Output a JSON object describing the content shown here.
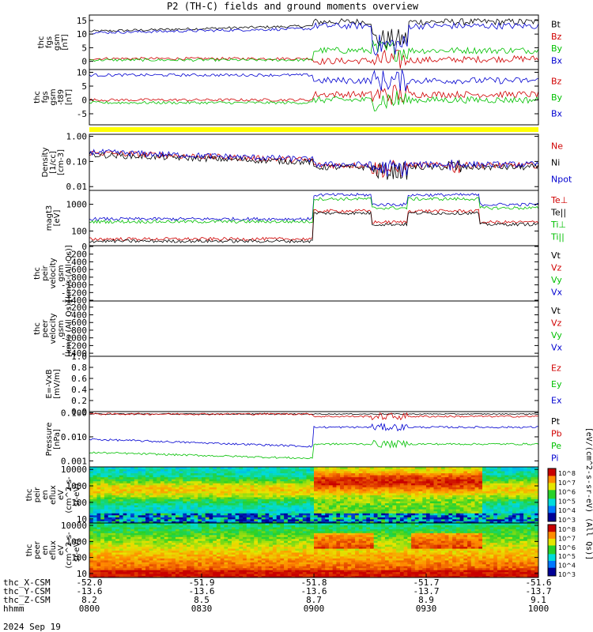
{
  "chart_data": {
    "type": "line",
    "title": "P2 (TH-C) fields and ground moments overview",
    "date": "2024 Sep 19",
    "panels": [
      {
        "key": "fgs_gsm",
        "ylabel": [
          "thc",
          "fgs",
          "gsm",
          "[nT]"
        ],
        "yticks": [
          15,
          10,
          5,
          0
        ],
        "legend": [
          {
            "label": "Bt",
            "color": "#000000"
          },
          {
            "label": "Bz",
            "color": "#d00000"
          },
          {
            "label": "By",
            "color": "#00c000"
          },
          {
            "label": "Bx",
            "color": "#0000d0"
          }
        ]
      },
      {
        "key": "fgs_gsm_b89",
        "ylabel": [
          "thc",
          "fgs",
          "gsm",
          "-t89",
          "[nT]"
        ],
        "yticks": [
          10,
          5,
          0,
          -5
        ],
        "legend": [
          {
            "label": "Bz",
            "color": "#d00000"
          },
          {
            "label": "By",
            "color": "#00c000"
          },
          {
            "label": "Bx",
            "color": "#0000d0"
          }
        ]
      },
      {
        "key": "density",
        "ylabel": [
          "Density",
          "[1/cc]",
          "[cm-3]"
        ],
        "yticks": [
          "1.00",
          "0.10",
          "0.01"
        ],
        "legend": [
          {
            "label": "Ne",
            "color": "#d00000"
          },
          {
            "label": "Ni",
            "color": "#000000"
          },
          {
            "label": "Npot",
            "color": "#0000d0"
          }
        ]
      },
      {
        "key": "temperature",
        "ylabel": [
          "magt3",
          "[eV]"
        ],
        "yticks": [
          1000,
          100
        ],
        "legend": [
          {
            "label": "Te⊥",
            "color": "#d00000"
          },
          {
            "label": "Te||",
            "color": "#000000"
          },
          {
            "label": "Ti⊥",
            "color": "#00c000"
          },
          {
            "label": "Ti||",
            "color": "#00c000"
          }
        ]
      },
      {
        "key": "peir_velocity",
        "ylabel": [
          "thc",
          "peir",
          "velocity",
          "gsm",
          "[km/s (All Qs)]"
        ],
        "yticks": [
          0,
          -200,
          -400,
          -600,
          -800,
          -1000,
          -1200,
          -1400
        ],
        "legend": [
          {
            "label": "Vt",
            "color": "#000000"
          },
          {
            "label": "Vz",
            "color": "#d00000"
          },
          {
            "label": "Vy",
            "color": "#00c000"
          },
          {
            "label": "Vx",
            "color": "#0000d0"
          }
        ]
      },
      {
        "key": "peer_velocity",
        "ylabel": [
          "thc",
          "peer",
          "velocity",
          "gsm",
          "[km/s (All Qs)]"
        ],
        "yticks": [
          -200,
          -400,
          -600,
          -800,
          -1000,
          -1200,
          -1400
        ],
        "legend": [
          {
            "label": "Vt",
            "color": "#000000"
          },
          {
            "label": "Vz",
            "color": "#d00000"
          },
          {
            "label": "Vy",
            "color": "#00c000"
          },
          {
            "label": "Vx",
            "color": "#0000d0"
          }
        ]
      },
      {
        "key": "efield",
        "ylabel": [
          "E=-VxB",
          "[mV/m]"
        ],
        "yticks": [
          "1.0",
          "0.8",
          "0.6",
          "0.4",
          "0.2",
          "0.0"
        ],
        "legend": [
          {
            "label": "Ez",
            "color": "#d00000"
          },
          {
            "label": "Ey",
            "color": "#00c000"
          },
          {
            "label": "Ex",
            "color": "#0000d0"
          }
        ]
      },
      {
        "key": "pressure",
        "ylabel": [
          "Pressure",
          "[nPa]"
        ],
        "yticks": [
          "0.100",
          "0.010",
          "0.001"
        ],
        "legend": [
          {
            "label": "Pt",
            "color": "#000000"
          },
          {
            "label": "Pb",
            "color": "#d00000"
          },
          {
            "label": "Pe",
            "color": "#00c000"
          },
          {
            "label": "Pi",
            "color": "#0000d0"
          }
        ]
      },
      {
        "key": "peir_eflux",
        "ylabel": [
          "thc",
          "peir",
          "en",
          "eflux",
          "eV",
          "(cm^2-s-",
          "sr-eV)"
        ],
        "yticks": [
          10000,
          1000,
          100,
          10
        ]
      },
      {
        "key": "peer_eflux",
        "ylabel": [
          "thc",
          "peer",
          "en",
          "eflux",
          "eV",
          "(cm^2-s-",
          "sr-eV)"
        ],
        "yticks": [
          10000,
          1000,
          100,
          10
        ]
      }
    ],
    "colorbar": {
      "label": "[eV/(cm^2-s-sr-eV) (All Qs)]",
      "upper_ticks": [
        "10^8",
        "10^7",
        "10^6",
        "10^5",
        "10^4",
        "10^3"
      ],
      "lower_ticks": [
        "10^8",
        "10^7",
        "10^6",
        "10^5",
        "10^4",
        "10^3"
      ]
    },
    "x_axis": {
      "row_labels": [
        "thc_X-CSM",
        "thc_Y-CSM",
        "thc_Z-CSM",
        "hhmm"
      ],
      "ticks": [
        {
          "x": "-52.0",
          "y": "-13.6",
          "z": "8.2",
          "hhmm": "0800"
        },
        {
          "x": "-51.9",
          "y": "-13.6",
          "z": "8.5",
          "hhmm": "0830"
        },
        {
          "x": "-51.8",
          "y": "-13.6",
          "z": "8.7",
          "hhmm": "0900"
        },
        {
          "x": "-51.7",
          "y": "-13.7",
          "z": "8.9",
          "hhmm": "0930"
        },
        {
          "x": "-51.6",
          "y": "-13.7",
          "z": "9.1",
          "hhmm": "1000"
        }
      ]
    }
  }
}
